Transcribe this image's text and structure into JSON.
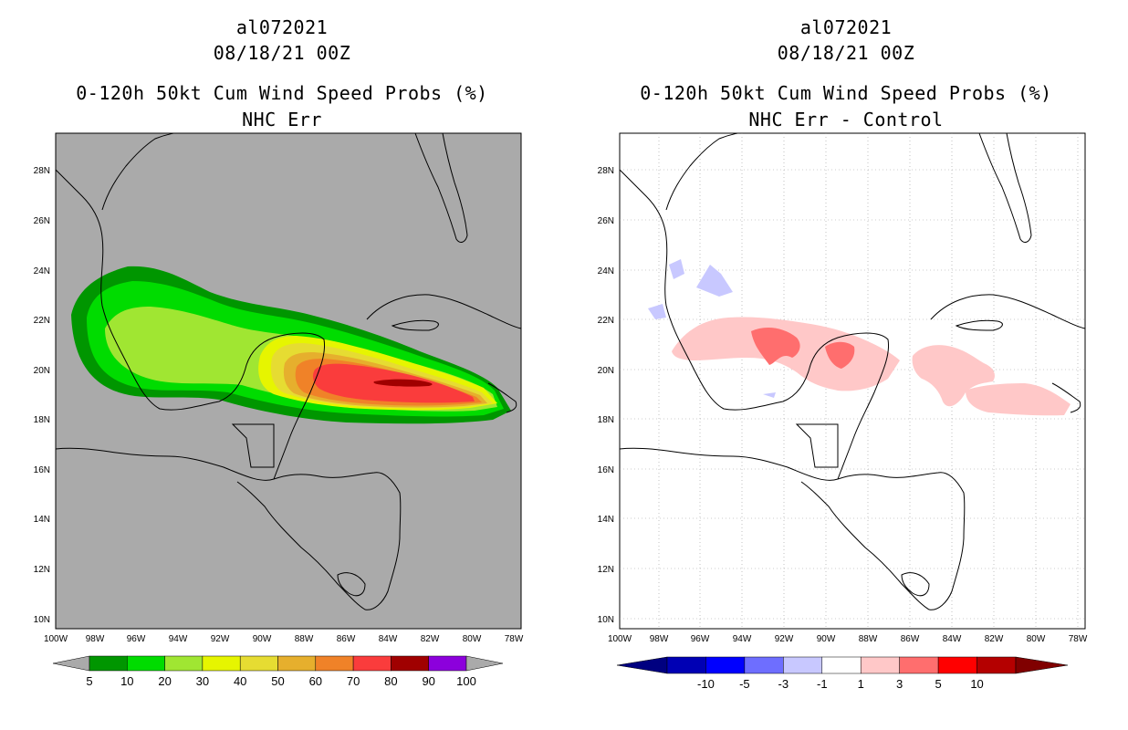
{
  "panels": [
    {
      "id": "left",
      "title_storm": "al072021",
      "title_time": "08/18/21 00Z",
      "title_product": "0-120h 50kt Cum Wind Speed Probs (%)",
      "title_variant": "NHC Err",
      "map_background": "#aaaaaa",
      "colorbar": {
        "colors": [
          "#009600",
          "#00dc00",
          "#a0e632",
          "#e6f500",
          "#e6dc32",
          "#e6af2d",
          "#f08228",
          "#fa3c3c",
          "#a00000",
          "#8c00dc"
        ],
        "labels": [
          "5",
          "10",
          "20",
          "30",
          "40",
          "50",
          "60",
          "70",
          "80",
          "90",
          "100"
        ]
      }
    },
    {
      "id": "right",
      "title_storm": "al072021",
      "title_time": "08/18/21 00Z",
      "title_product": "0-120h 50kt Cum Wind Speed Probs (%)",
      "title_variant": "NHC Err - Control",
      "map_background": "#ffffff",
      "colorbar": {
        "colors": [
          "#0000b4",
          "#0000ff",
          "#6e6eff",
          "#c8c8ff",
          "#ffffff",
          "#ffc8c8",
          "#ff6e6e",
          "#ff0000",
          "#b40000"
        ],
        "labels": [
          "-10",
          "-5",
          "-3",
          "-1",
          "1",
          "3",
          "5",
          "10"
        ]
      }
    }
  ],
  "axes": {
    "lat_ticks": [
      "28N",
      "26N",
      "24N",
      "22N",
      "20N",
      "18N",
      "16N",
      "14N",
      "12N",
      "10N"
    ],
    "lon_ticks": [
      "100W",
      "98W",
      "96W",
      "94W",
      "92W",
      "90W",
      "88W",
      "86W",
      "84W",
      "82W",
      "80W",
      "78W"
    ]
  }
}
